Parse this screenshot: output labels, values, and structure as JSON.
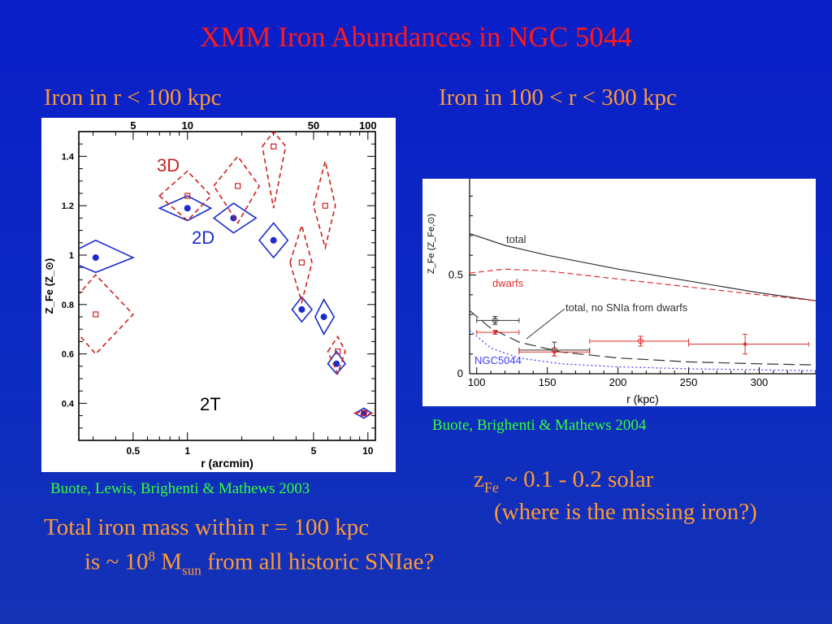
{
  "slide": {
    "title": "XMM Iron Abundances in NGC 5044",
    "left_heading": "Iron in r < 100 kpc",
    "right_heading": "Iron in 100 < r < 300 kpc",
    "left_citation": "Buote, Lewis, Brighenti & Mathews 2003",
    "right_citation": "Buote, Brighenti & Mathews 2004",
    "zfe": {
      "symbol": "z",
      "sub": "Fe",
      "text": " ~ 0.1 - 0.2 solar"
    },
    "missing_iron": "(where is the missing iron?)",
    "mass_line1": "Total iron mass within r = 100 kpc",
    "mass_line2_pre": "is ~ 10",
    "mass_exp": "8",
    "mass_M": " M",
    "mass_sub": "sun",
    "mass_post": "  from all historic SNIae?",
    "colors": {
      "title": "#ff1a1a",
      "text": "#ff9933",
      "citation": "#33ff33",
      "bg": "#0d2cc2"
    }
  },
  "chart_data": [
    {
      "type": "scatter",
      "xlabel": "r (arcmin)",
      "ylabel": "Z_Fe (Z_⊙)",
      "xscale": "log",
      "xlim": [
        0.25,
        11
      ],
      "ylim": [
        0.25,
        1.5
      ],
      "xticks": [
        0.5,
        1,
        5,
        10
      ],
      "yticks": [
        0.4,
        0.6,
        0.8,
        1,
        1.2,
        1.4
      ],
      "top_axis_ticks": [
        "5",
        "10",
        "50",
        "100"
      ],
      "top_axis_positions_arcmin": [
        0.5,
        1,
        5,
        10
      ],
      "annotations": [
        "3D",
        "2D",
        "2T"
      ],
      "series": [
        {
          "name": "2D",
          "color": "#1a2ccc",
          "points": [
            {
              "x": 0.31,
              "y": 0.99,
              "xlo": 0.2,
              "xhi": 0.5,
              "ylo": 0.93,
              "yhi": 1.06
            },
            {
              "x": 1.0,
              "y": 1.19,
              "xlo": 0.7,
              "xhi": 1.35,
              "ylo": 1.14,
              "yhi": 1.24
            },
            {
              "x": 1.8,
              "y": 1.15,
              "xlo": 1.4,
              "xhi": 2.4,
              "ylo": 1.09,
              "yhi": 1.21
            },
            {
              "x": 3.0,
              "y": 1.06,
              "xlo": 2.5,
              "xhi": 3.6,
              "ylo": 0.99,
              "yhi": 1.13
            },
            {
              "x": 4.3,
              "y": 0.78,
              "xlo": 3.8,
              "xhi": 4.9,
              "ylo": 0.73,
              "yhi": 0.83
            },
            {
              "x": 5.7,
              "y": 0.75,
              "xlo": 5.1,
              "xhi": 6.5,
              "ylo": 0.68,
              "yhi": 0.82
            },
            {
              "x": 6.7,
              "y": 0.56,
              "xlo": 6.0,
              "xhi": 7.5,
              "ylo": 0.52,
              "yhi": 0.61
            },
            {
              "x": 9.5,
              "y": 0.36,
              "xlo": 8.5,
              "xhi": 10.5,
              "ylo": 0.34,
              "yhi": 0.38
            }
          ]
        },
        {
          "name": "3D",
          "color": "#cc2020",
          "points": [
            {
              "x": 0.31,
              "y": 0.76,
              "xlo": 0.2,
              "xhi": 0.5,
              "ylo": 0.6,
              "yhi": 0.92
            },
            {
              "x": 1.0,
              "y": 1.24,
              "xlo": 0.7,
              "xhi": 1.35,
              "ylo": 1.14,
              "yhi": 1.34
            },
            {
              "x": 1.9,
              "y": 1.28,
              "xlo": 1.4,
              "xhi": 2.5,
              "ylo": 1.13,
              "yhi": 1.4
            },
            {
              "x": 3.0,
              "y": 1.44,
              "xlo": 2.6,
              "xhi": 3.5,
              "ylo": 1.19,
              "yhi": 1.5
            },
            {
              "x": 4.3,
              "y": 0.97,
              "xlo": 3.7,
              "xhi": 4.9,
              "ylo": 0.81,
              "yhi": 1.12
            },
            {
              "x": 5.8,
              "y": 1.2,
              "xlo": 5.0,
              "xhi": 6.6,
              "ylo": 1.03,
              "yhi": 1.38
            },
            {
              "x": 6.8,
              "y": 0.61,
              "xlo": 6.0,
              "xhi": 7.5,
              "ylo": 0.52,
              "yhi": 0.67
            },
            {
              "x": 9.5,
              "y": 0.36,
              "xlo": 8.5,
              "xhi": 10.5,
              "ylo": 0.35,
              "yhi": 0.37
            }
          ]
        }
      ]
    },
    {
      "type": "line",
      "xlabel": "r (kpc)",
      "ylabel": "Z_Fe (Z_Fe,⊙)",
      "xlim": [
        95,
        340
      ],
      "ylim": [
        0,
        1
      ],
      "xticks": [
        100,
        150,
        200,
        250,
        300
      ],
      "yticks": [
        0,
        0.5
      ],
      "annotations": [
        "total, no SNIa from dwarfs"
      ],
      "series": [
        {
          "name": "total",
          "color": "#333333",
          "style": "solid",
          "x": [
            95,
            120,
            150,
            200,
            250,
            300,
            340
          ],
          "y": [
            0.71,
            0.65,
            0.6,
            0.53,
            0.47,
            0.41,
            0.37
          ]
        },
        {
          "name": "dwarfs",
          "color": "#e03030",
          "style": "dashed",
          "x": [
            95,
            120,
            150,
            200,
            250,
            300,
            340
          ],
          "y": [
            0.51,
            0.53,
            0.52,
            0.48,
            0.44,
            0.4,
            0.37
          ]
        },
        {
          "name": "",
          "color": "#333333",
          "style": "longdash",
          "x": [
            95,
            110,
            130,
            160,
            200,
            250,
            300,
            340
          ],
          "y": [
            0.32,
            0.23,
            0.16,
            0.11,
            0.08,
            0.06,
            0.05,
            0.045
          ]
        },
        {
          "name": "NGC5044",
          "color": "#3a3aff",
          "style": "dotted",
          "x": [
            95,
            110,
            130,
            160,
            200,
            250,
            300,
            340
          ],
          "y": [
            0.22,
            0.13,
            0.08,
            0.05,
            0.035,
            0.025,
            0.02,
            0.015
          ]
        }
      ],
      "points": [
        {
          "x": 113,
          "y": 0.27,
          "xlo": 100,
          "xhi": 130,
          "ylo": 0.25,
          "yhi": 0.29,
          "color": "#333333",
          "marker": "open-circle"
        },
        {
          "x": 113,
          "y": 0.21,
          "xlo": 100,
          "xhi": 130,
          "ylo": 0.2,
          "yhi": 0.22,
          "color": "#e03030",
          "marker": "filled"
        },
        {
          "x": 155,
          "y": 0.12,
          "xlo": 130,
          "xhi": 180,
          "ylo": 0.09,
          "yhi": 0.16,
          "color": "#333333",
          "marker": "open-circle"
        },
        {
          "x": 155,
          "y": 0.11,
          "xlo": 130,
          "xhi": 180,
          "ylo": 0.09,
          "yhi": 0.13,
          "color": "#e03030",
          "marker": "filled"
        },
        {
          "x": 216,
          "y": 0.165,
          "xlo": 180,
          "xhi": 250,
          "ylo": 0.14,
          "yhi": 0.19,
          "color": "#e03030",
          "marker": "open-circle"
        },
        {
          "x": 290,
          "y": 0.15,
          "xlo": 250,
          "xhi": 335,
          "ylo": 0.1,
          "yhi": 0.2,
          "color": "#e03030",
          "marker": "filled"
        }
      ]
    }
  ]
}
